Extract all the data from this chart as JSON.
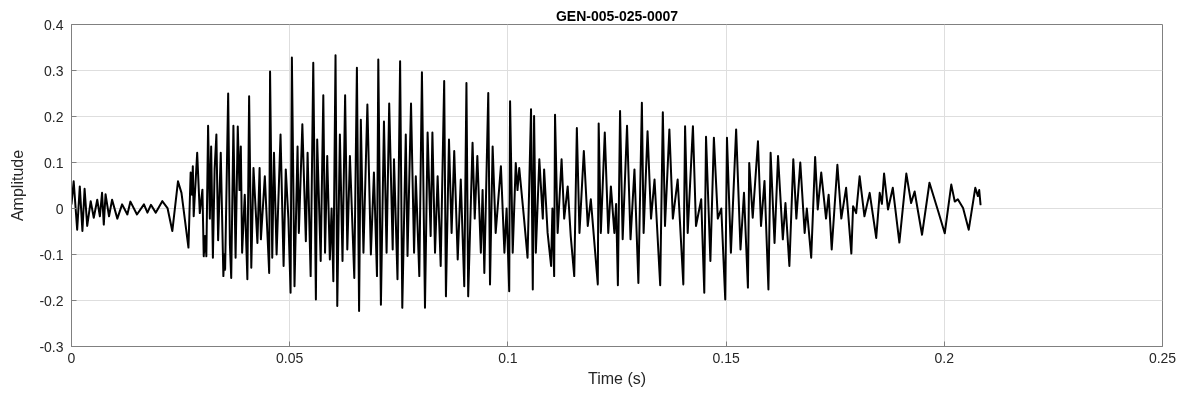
{
  "chart_data": {
    "type": "line",
    "title": "GEN-005-025-0007",
    "xlabel": "Time (s)",
    "ylabel": "Amplitude",
    "x": [
      0.0,
      0.0005,
      0.0013,
      0.0019,
      0.0025,
      0.003,
      0.0036,
      0.0044,
      0.0051,
      0.0059,
      0.0065,
      0.007,
      0.0074,
      0.0078,
      0.0086,
      0.0093,
      0.0105,
      0.0116,
      0.0128,
      0.0135,
      0.015,
      0.0166,
      0.0174,
      0.0182,
      0.0193,
      0.0208,
      0.022,
      0.0231,
      0.0244,
      0.0252,
      0.0268,
      0.0273,
      0.0276,
      0.0278,
      0.028,
      0.0288,
      0.0294,
      0.03,
      0.0303,
      0.0306,
      0.0309,
      0.0313,
      0.0317,
      0.032,
      0.0324,
      0.0328,
      0.0332,
      0.0336,
      0.0342,
      0.0348,
      0.035,
      0.0352,
      0.0359,
      0.0363,
      0.0366,
      0.0371,
      0.0376,
      0.0381,
      0.0385,
      0.0388,
      0.0391,
      0.0397,
      0.0403,
      0.0407,
      0.0412,
      0.0417,
      0.0426,
      0.0431,
      0.0434,
      0.0443,
      0.0453,
      0.0455,
      0.046,
      0.0464,
      0.047,
      0.0479,
      0.0486,
      0.0491,
      0.0497,
      0.0502,
      0.0505,
      0.0511,
      0.0518,
      0.0521,
      0.0529,
      0.0537,
      0.0541,
      0.0548,
      0.0554,
      0.056,
      0.0563,
      0.0571,
      0.0577,
      0.0581,
      0.0586,
      0.0592,
      0.0596,
      0.06,
      0.0605,
      0.0609,
      0.0615,
      0.0621,
      0.0627,
      0.0632,
      0.0638,
      0.0648,
      0.0654,
      0.0659,
      0.0663,
      0.0669,
      0.0678,
      0.0686,
      0.0693,
      0.07,
      0.0703,
      0.0709,
      0.0716,
      0.0722,
      0.0728,
      0.0736,
      0.0739,
      0.0747,
      0.0753,
      0.0758,
      0.0766,
      0.077,
      0.0778,
      0.0785,
      0.0789,
      0.0797,
      0.0803,
      0.081,
      0.0816,
      0.0823,
      0.0827,
      0.0833,
      0.0839,
      0.0846,
      0.0854,
      0.0858,
      0.0865,
      0.0871,
      0.0877,
      0.0885,
      0.0892,
      0.09,
      0.0905,
      0.0909,
      0.0919,
      0.0924,
      0.093,
      0.0938,
      0.0942,
      0.0946,
      0.0955,
      0.0959,
      0.0965,
      0.0972,
      0.0984,
      0.0992,
      0.0997,
      0.1003,
      0.1005,
      0.1011,
      0.1018,
      0.1022,
      0.1026,
      0.1037,
      0.1045,
      0.1053,
      0.1057,
      0.106,
      0.1064,
      0.1072,
      0.108,
      0.1083,
      0.1091,
      0.1099,
      0.1102,
      0.1106,
      0.1108,
      0.1114,
      0.1123,
      0.1129,
      0.1137,
      0.1144,
      0.1152,
      0.1158,
      0.1164,
      0.1174,
      0.1183,
      0.119,
      0.1206,
      0.1208,
      0.1213,
      0.1222,
      0.123,
      0.1236,
      0.1244,
      0.1248,
      0.1252,
      0.1257,
      0.1263,
      0.1273,
      0.1281,
      0.129,
      0.1299,
      0.1307,
      0.1311,
      0.132,
      0.1328,
      0.1336,
      0.1349,
      0.1355,
      0.136,
      0.137,
      0.1378,
      0.1389,
      0.1402,
      0.1406,
      0.1412,
      0.1424,
      0.1431,
      0.1443,
      0.145,
      0.1454,
      0.1464,
      0.1472,
      0.1481,
      0.1489,
      0.1498,
      0.1502,
      0.1511,
      0.1523,
      0.1533,
      0.1541,
      0.155,
      0.1553,
      0.1561,
      0.1573,
      0.158,
      0.1588,
      0.1597,
      0.1602,
      0.1611,
      0.1619,
      0.163,
      0.1636,
      0.1645,
      0.1654,
      0.1661,
      0.167,
      0.168,
      0.1685,
      0.1695,
      0.1704,
      0.171,
      0.1718,
      0.1729,
      0.1735,
      0.1742,
      0.1755,
      0.1764,
      0.1775,
      0.1787,
      0.1791,
      0.1798,
      0.1806,
      0.1817,
      0.1829,
      0.1844,
      0.1852,
      0.1857,
      0.1862,
      0.1871,
      0.1882,
      0.1897,
      0.1913,
      0.1924,
      0.1932,
      0.1949,
      0.1966,
      0.1986,
      0.2001,
      0.2016,
      0.2024,
      0.2031,
      0.2043,
      0.2056,
      0.2071,
      0.2077,
      0.208,
      0.2083
    ],
    "series": [
      {
        "color": "#000000",
        "values": [
          0.01,
          0.059,
          -0.046,
          0.048,
          -0.049,
          0.043,
          -0.038,
          0.016,
          -0.02,
          0.019,
          -0.017,
          0.034,
          -0.035,
          0.031,
          -0.017,
          0.019,
          -0.022,
          0.009,
          -0.013,
          0.015,
          -0.013,
          0.009,
          -0.009,
          0.008,
          -0.009,
          0.016,
          0.001,
          -0.049,
          0.059,
          0.034,
          -0.085,
          0.078,
          0.03,
          0.092,
          -0.017,
          0.121,
          -0.01,
          0.041,
          -0.104,
          -0.06,
          -0.104,
          0.18,
          -0.022,
          0.135,
          -0.107,
          0.087,
          0.161,
          -0.069,
          0.121,
          -0.147,
          -0.1,
          -0.133,
          0.25,
          -0.079,
          -0.151,
          0.18,
          -0.107,
          0.178,
          0.04,
          0.135,
          -0.096,
          0.03,
          -0.154,
          0.244,
          -0.129,
          0.088,
          -0.075,
          0.088,
          -0.067,
          0.07,
          -0.14,
          0.298,
          -0.107,
          0.121,
          -0.1,
          0.161,
          -0.125,
          0.085,
          -0.022,
          -0.183,
          0.328,
          -0.169,
          0.135,
          -0.053,
          0.183,
          -0.071,
          0.121,
          -0.147,
          0.317,
          -0.198,
          0.15,
          -0.114,
          0.246,
          -0.096,
          0.114,
          -0.111,
          0.0,
          -0.158,
          0.333,
          -0.212,
          0.161,
          -0.114,
          0.246,
          -0.089,
          0.114,
          -0.151,
          0.306,
          -0.223,
          0.193,
          -0.096,
          0.226,
          -0.1,
          0.078,
          -0.147,
          0.324,
          -0.209,
          0.189,
          -0.096,
          0.228,
          -0.089,
          0.107,
          -0.154,
          0.32,
          -0.216,
          0.161,
          -0.103,
          0.228,
          -0.096,
          0.07,
          -0.147,
          0.296,
          -0.216,
          0.165,
          -0.06,
          0.165,
          -0.096,
          0.07,
          -0.125,
          0.277,
          -0.191,
          0.15,
          -0.053,
          0.125,
          -0.111,
          0.063,
          -0.169,
          0.273,
          -0.191,
          0.143,
          -0.022,
          0.114,
          -0.096,
          0.04,
          -0.14,
          0.251,
          -0.165,
          0.135,
          -0.053,
          0.092,
          -0.096,
          0.0,
          -0.18,
          0.233,
          -0.096,
          0.099,
          0.04,
          0.088,
          -0.022,
          -0.107,
          0.216,
          -0.176,
          0.201,
          -0.096,
          0.107,
          -0.022,
          0.085,
          -0.053,
          -0.125,
          0.0,
          -0.147,
          0.204,
          -0.053,
          0.107,
          -0.022,
          0.048,
          -0.06,
          -0.147,
          0.175,
          -0.053,
          0.125,
          -0.038,
          0.02,
          -0.165,
          0.185,
          -0.053,
          0.165,
          -0.053,
          0.048,
          -0.053,
          0.01,
          -0.167,
          0.212,
          -0.067,
          0.18,
          -0.067,
          0.085,
          -0.162,
          0.23,
          -0.053,
          0.168,
          -0.022,
          0.063,
          -0.167,
          0.209,
          -0.038,
          0.172,
          -0.022,
          0.063,
          -0.165,
          0.179,
          -0.053,
          0.179,
          -0.038,
          0.02,
          -0.183,
          0.156,
          -0.114,
          0.154,
          -0.022,
          0.0,
          -0.198,
          0.154,
          -0.096,
          0.172,
          -0.089,
          0.034,
          -0.172,
          0.099,
          -0.02,
          0.146,
          -0.038,
          0.06,
          -0.176,
          0.121,
          -0.075,
          0.114,
          -0.067,
          0.012,
          -0.125,
          0.107,
          -0.022,
          0.1,
          -0.053,
          0.0,
          -0.107,
          0.112,
          -0.002,
          0.078,
          -0.022,
          0.03,
          -0.089,
          0.095,
          -0.022,
          0.045,
          -0.098,
          0.005,
          -0.01,
          0.07,
          -0.017,
          0.034,
          -0.064,
          0.034,
          0.01,
          0.076,
          -0.002,
          0.045,
          -0.074,
          0.076,
          0.012,
          0.037,
          -0.057,
          0.056,
          -0.006,
          -0.054,
          0.052,
          0.015,
          0.02,
          0.001,
          -0.046,
          0.045,
          0.027,
          0.04,
          0.009
        ]
      }
    ],
    "xlim": [
      0,
      0.25
    ],
    "ylim": [
      -0.3,
      0.4
    ],
    "xticks": [
      0,
      0.05,
      0.1,
      0.15,
      0.2,
      0.25
    ],
    "yticks": [
      -0.3,
      -0.2,
      -0.1,
      0,
      0.1,
      0.2,
      0.3,
      0.4
    ],
    "grid": true,
    "line_style": "solid"
  }
}
